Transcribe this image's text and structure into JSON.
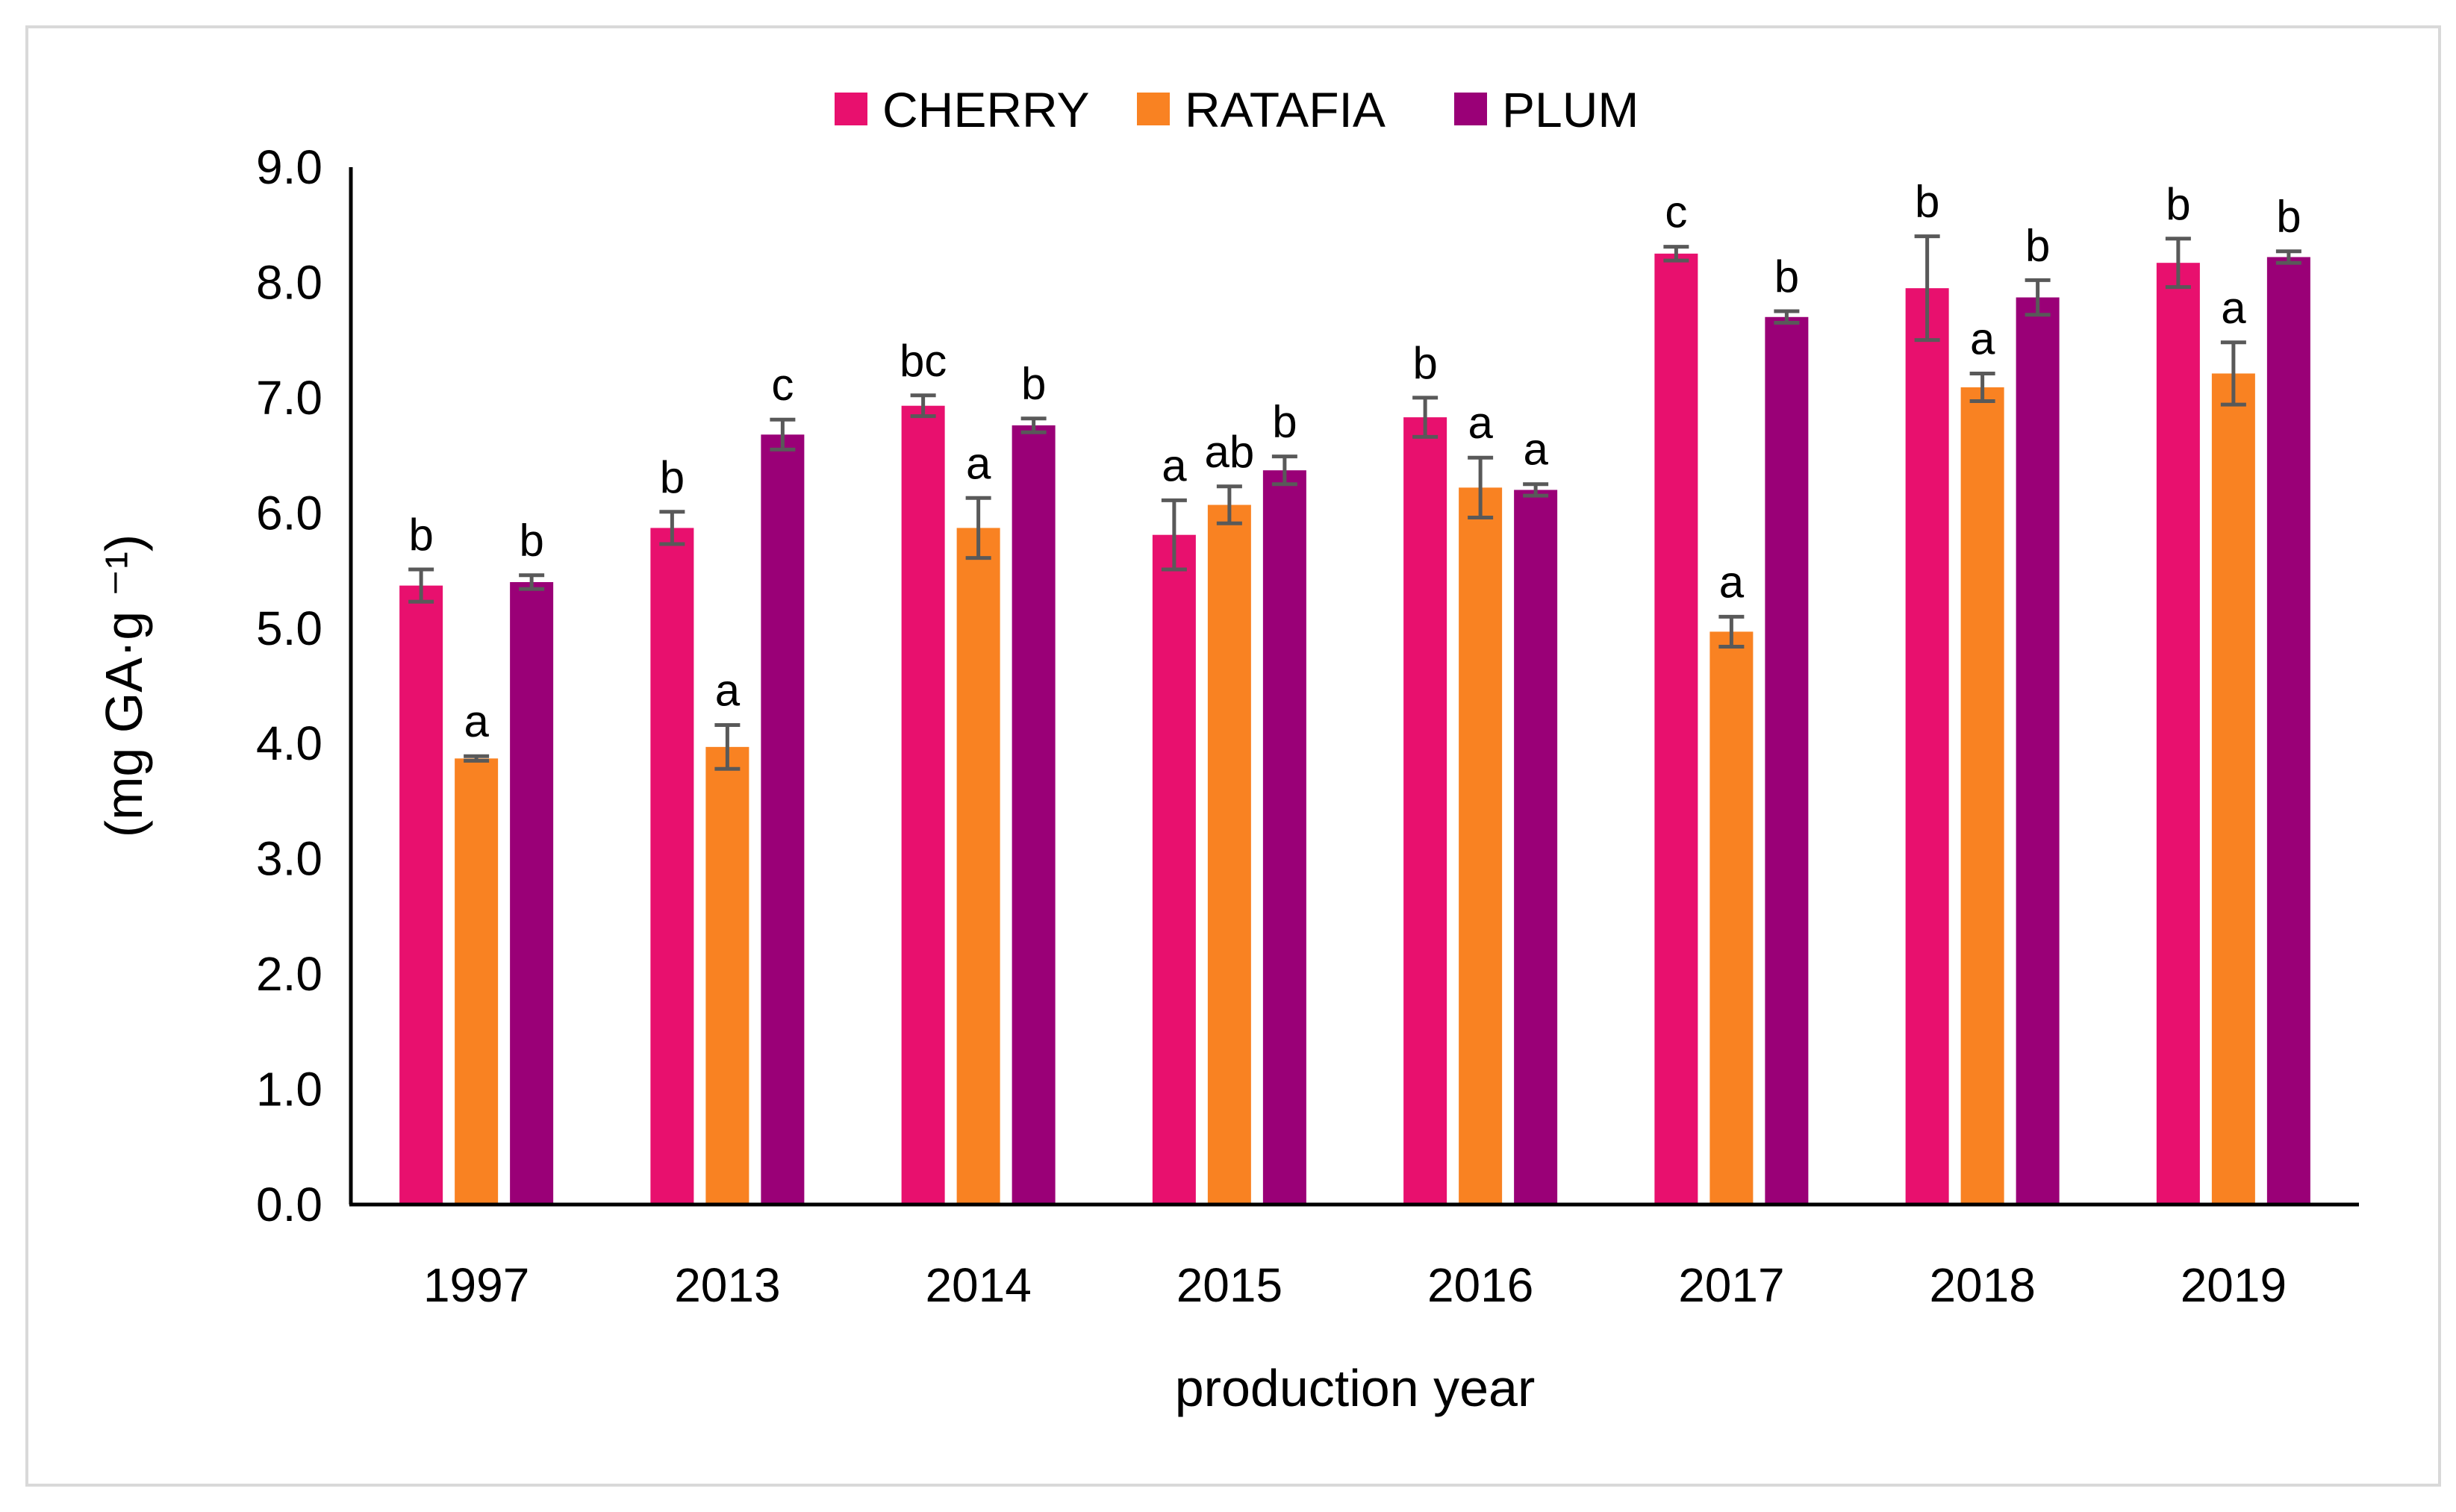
{
  "chart_data": {
    "type": "bar",
    "title": "",
    "xlabel": "production year",
    "ylabel": "(mg GA·g ⁻¹)",
    "ylim": [
      0,
      9
    ],
    "yticks": [
      "0.0",
      "1.0",
      "2.0",
      "3.0",
      "4.0",
      "5.0",
      "6.0",
      "7.0",
      "8.0",
      "9.0"
    ],
    "grid": false,
    "legend_position": "top-center",
    "error_bars": true,
    "categories": [
      "1997",
      "2013",
      "2014",
      "2015",
      "2016",
      "2017",
      "2018",
      "2019"
    ],
    "series": [
      {
        "name": "CHERRY",
        "color": "#e8106e",
        "values": [
          5.37,
          5.87,
          6.93,
          5.81,
          6.83,
          8.25,
          7.95,
          8.17
        ],
        "errors": [
          0.14,
          0.14,
          0.09,
          0.3,
          0.17,
          0.06,
          0.45,
          0.21
        ],
        "labels": [
          "b",
          "b",
          "bc",
          "a",
          "b",
          "c",
          "b",
          "b"
        ]
      },
      {
        "name": "RATAFIA",
        "color": "#f98222",
        "values": [
          3.87,
          3.97,
          5.87,
          6.07,
          6.22,
          4.97,
          7.09,
          7.21
        ],
        "errors": [
          0.02,
          0.19,
          0.26,
          0.16,
          0.26,
          0.13,
          0.12,
          0.27
        ],
        "labels": [
          "a",
          "a",
          "a",
          "ab",
          "a",
          "a",
          "a",
          "a"
        ]
      },
      {
        "name": "PLUM",
        "color": "#9a0077",
        "values": [
          5.4,
          6.68,
          6.76,
          6.37,
          6.2,
          7.7,
          7.87,
          8.22
        ],
        "errors": [
          0.06,
          0.13,
          0.06,
          0.12,
          0.05,
          0.05,
          0.15,
          0.05
        ],
        "labels": [
          "b",
          "c",
          "b",
          "b",
          "a",
          "b",
          "b",
          "b"
        ]
      }
    ]
  }
}
